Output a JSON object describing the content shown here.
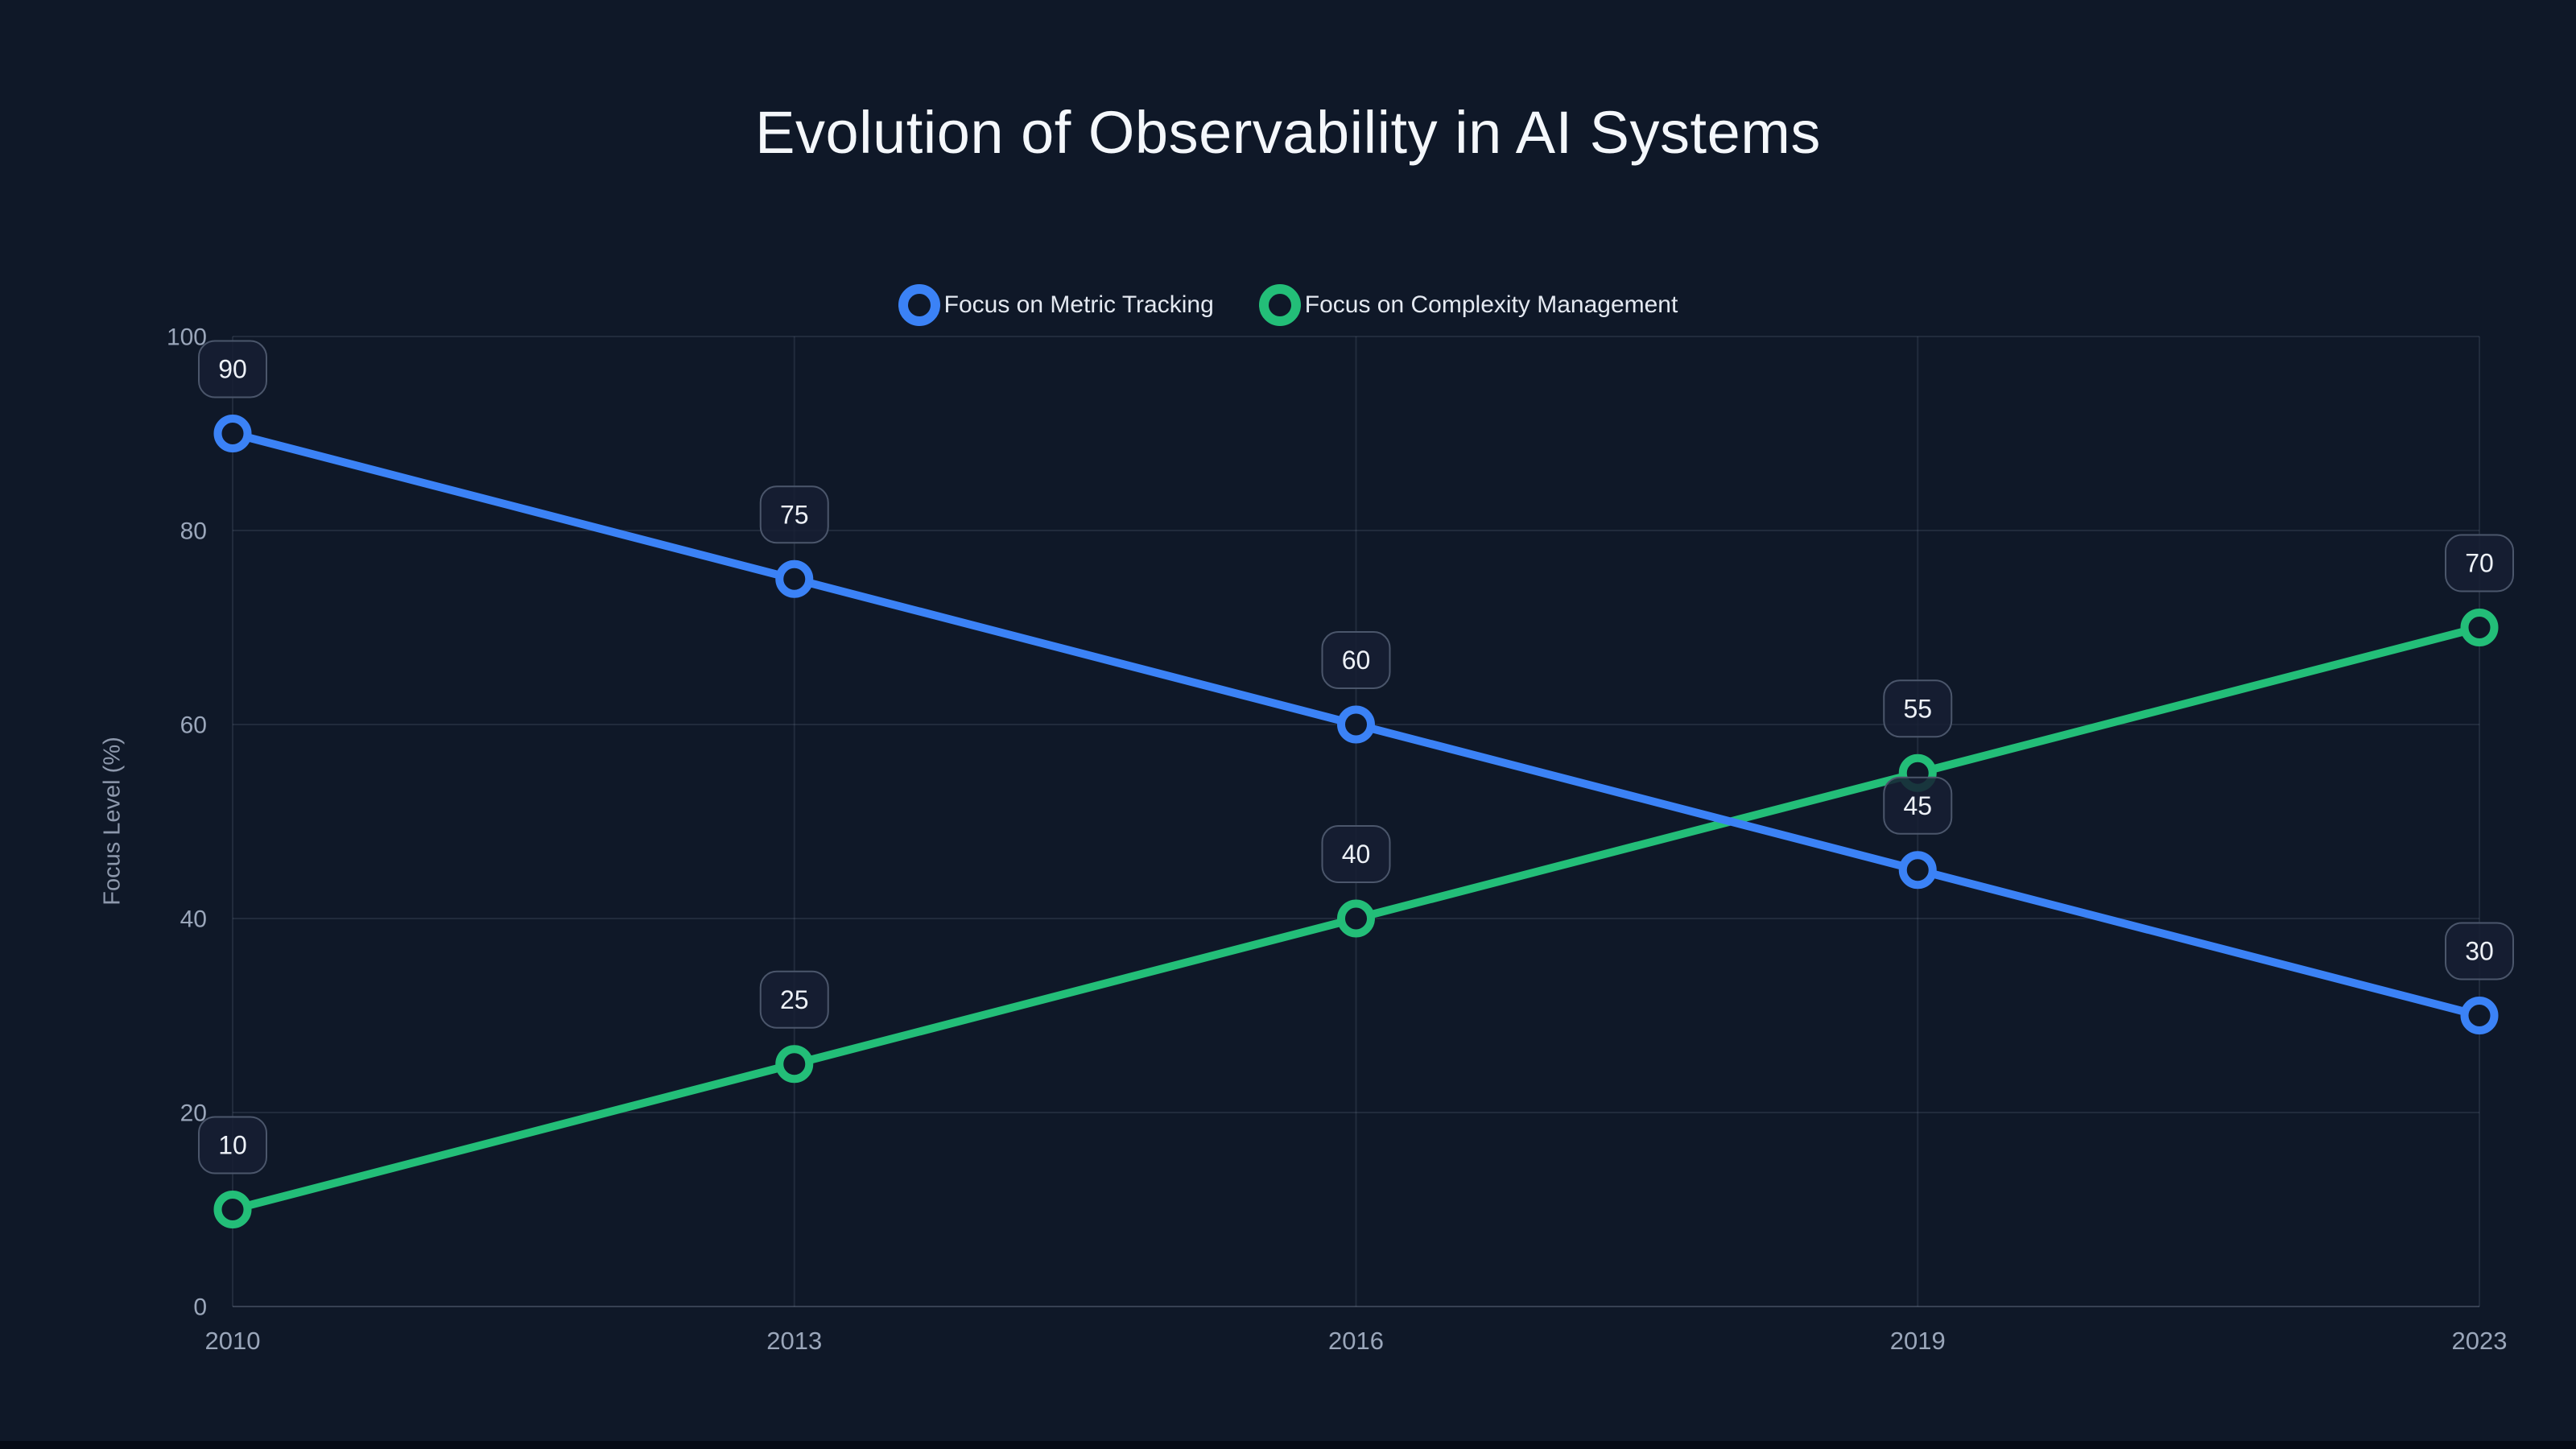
{
  "page": {
    "title": "Evolution of Observability in AI Systems",
    "background": "#0f1828"
  },
  "chart_data": {
    "type": "line",
    "title": "Evolution of Observability in AI Systems",
    "categories": [
      "2010",
      "2013",
      "2016",
      "2019",
      "2023"
    ],
    "series": [
      {
        "name": "Focus on Metric Tracking",
        "color": "#3b82f6",
        "values": [
          90,
          75,
          60,
          45,
          30
        ]
      },
      {
        "name": "Focus on Complexity Management",
        "color": "#23be78",
        "values": [
          10,
          25,
          40,
          55,
          70
        ]
      }
    ],
    "xlabel": "",
    "ylabel": "Focus Level (%)",
    "ylim": [
      0,
      100
    ],
    "yticks": [
      0,
      20,
      40,
      60,
      80,
      100
    ],
    "grid": true,
    "point_labels": true,
    "legend_position": "top-center"
  },
  "colors": {
    "grid": "rgba(148,163,184,0.14)",
    "axis": "rgba(148,163,184,0.30)",
    "tick_text": "#9aa6ba",
    "badge_fill": "rgba(22,31,50,0.85)",
    "badge_border": "#4b566b",
    "badge_text": "#edf1f7",
    "marker_fill": "#0f1828"
  }
}
